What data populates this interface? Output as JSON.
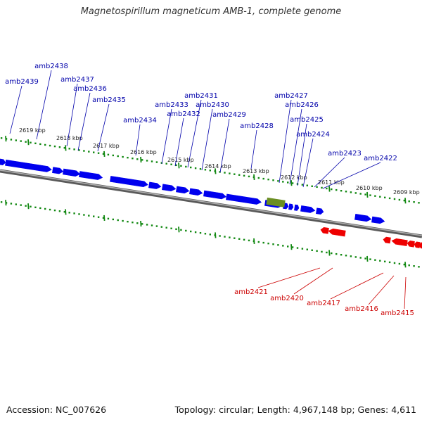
{
  "title": "Magnetospirillum magneticum AMB-1, complete genome",
  "footer": {
    "accession": "Accession: NC_007626",
    "topology": "Topology: circular; Length: 4,967,148 bp; Genes: 4,611"
  },
  "colors": {
    "forward_gene": "#0000ee",
    "reverse_gene": "#ee0000",
    "rna_gene": "#6b8e23",
    "forward_label": "#0000aa",
    "reverse_label": "#cc0000",
    "backbone": "#7a7a7a",
    "tick": "#118811"
  },
  "scale_labels": [
    "2619 kbp",
    "2618 kbp",
    "2617 kbp",
    "2616 kbp",
    "2615 kbp",
    "2614 kbp",
    "2613 kbp",
    "2612 kbp",
    "2611 kbp",
    "2610 kbp",
    "2609 kbp"
  ],
  "forward_genes": [
    "amb2439",
    "amb2438",
    "amb2437",
    "amb2436",
    "amb2435",
    "amb2434",
    "amb2433",
    "amb2432",
    "amb2431",
    "amb2430",
    "amb2429",
    "amb2428",
    "amb2427",
    "amb2426",
    "amb2425",
    "amb2424",
    "amb2423",
    "amb2422"
  ],
  "reverse_genes": [
    "amb2421",
    "amb2420",
    "amb2417",
    "amb2416",
    "amb2415"
  ]
}
